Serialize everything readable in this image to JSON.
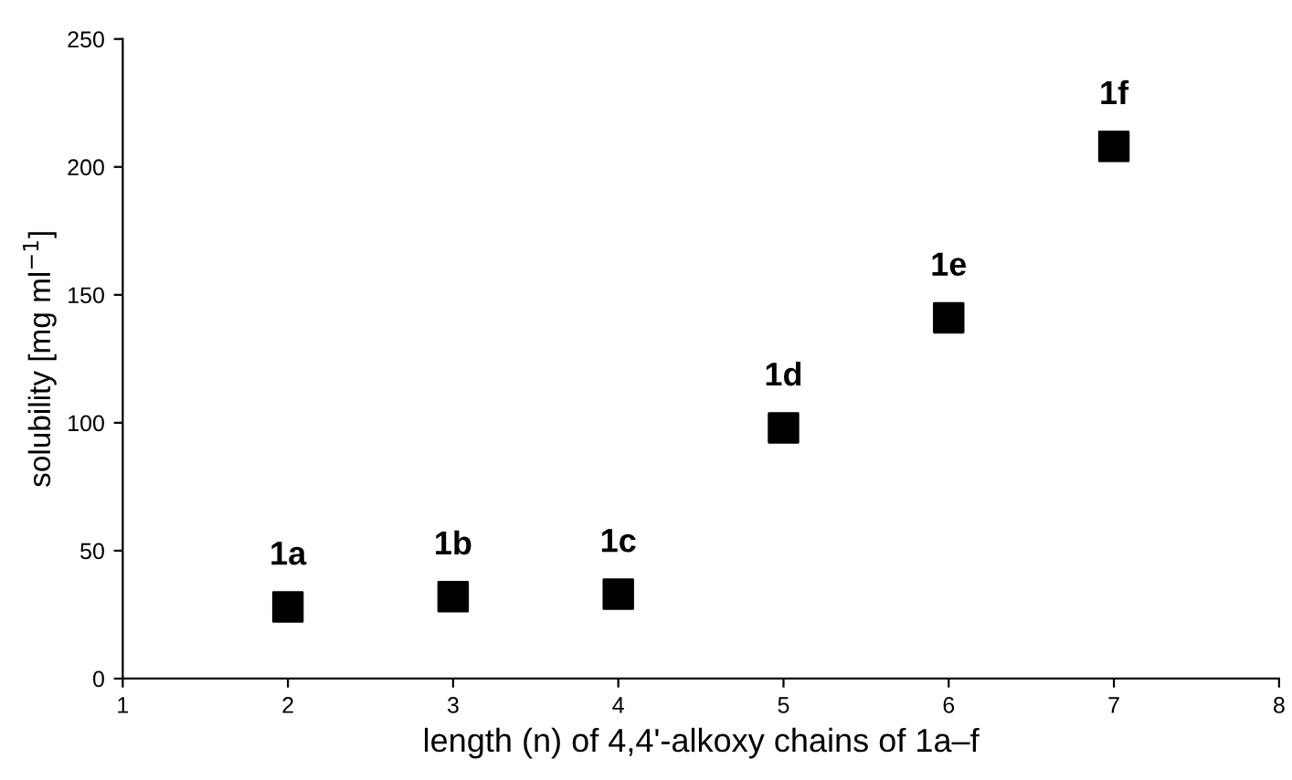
{
  "chart_data": {
    "type": "scatter",
    "xlabel": "length (n) of 4,4'-alkoxy chains of 1a–f",
    "ylabel": "solubility [mg ml$^{−1}$]",
    "x": [
      2,
      3,
      4,
      5,
      6,
      7
    ],
    "series": [
      {
        "color": "#000000",
        "values": [
          28,
          32,
          33,
          98,
          141,
          208
        ]
      }
    ],
    "marker": "square",
    "grid": false,
    "legend": false,
    "xlim": [
      1,
      8
    ],
    "xticks": [
      1,
      2,
      3,
      4,
      5,
      6,
      7,
      8
    ],
    "ylim": [
      0,
      250
    ],
    "yticks": [
      0,
      50,
      100,
      150,
      200,
      250
    ],
    "annotations": [
      {
        "text": "1a",
        "x": 2,
        "y": 28
      },
      {
        "text": "1b",
        "x": 3,
        "y": 32
      },
      {
        "text": "1c",
        "x": 4,
        "y": 33
      },
      {
        "text": "1d",
        "x": 5,
        "y": 98
      },
      {
        "text": "1e",
        "x": 6,
        "y": 141
      },
      {
        "text": "1f",
        "x": 7,
        "y": 208
      }
    ]
  }
}
